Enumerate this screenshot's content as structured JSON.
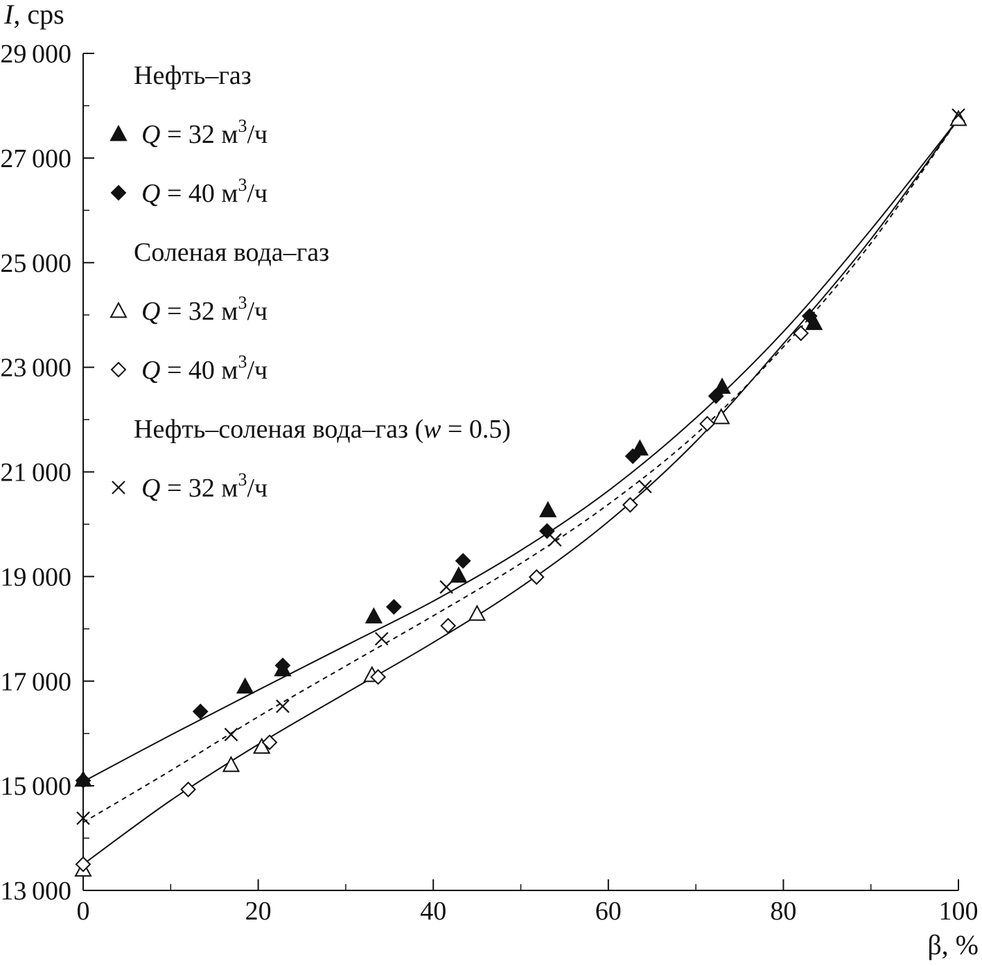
{
  "chart_data": {
    "type": "scatter",
    "ylabel": {
      "var": "I",
      "unit": ", cps"
    },
    "xlabel": {
      "var": "β",
      "unit": ", %"
    },
    "xlim": [
      0,
      100
    ],
    "ylim": [
      13000,
      29000
    ],
    "x_ticks": [
      "0",
      "20",
      "40",
      "60",
      "80",
      "100"
    ],
    "y_ticks": [
      "13000",
      "15000",
      "17000",
      "19000",
      "21000",
      "23000",
      "25000",
      "27000",
      "29000"
    ],
    "legend_position": "top-left",
    "groups": [
      {
        "heading": "Нефть–газ",
        "heading_italic_part": "",
        "heading_suffix": "",
        "entries": [
          {
            "marker": "triangle-filled",
            "label_q": "Q",
            "label_rest": " = 32 м",
            "label_sup": "3",
            "label_tail": "/ч"
          },
          {
            "marker": "diamond-filled",
            "label_q": "Q",
            "label_rest": " = 40 м",
            "label_sup": "3",
            "label_tail": "/ч"
          }
        ]
      },
      {
        "heading": "Соленая вода–газ",
        "heading_italic_part": "",
        "heading_suffix": "",
        "entries": [
          {
            "marker": "triangle-open",
            "label_q": "Q",
            "label_rest": " = 32 м",
            "label_sup": "3",
            "label_tail": "/ч"
          },
          {
            "marker": "diamond-open",
            "label_q": "Q",
            "label_rest": " = 40 м",
            "label_sup": "3",
            "label_tail": "/ч"
          }
        ]
      },
      {
        "heading": "Нефть–соленая вода–газ (",
        "heading_italic_part": "w",
        "heading_suffix": " = 0.5)",
        "entries": [
          {
            "marker": "cross",
            "label_q": "Q",
            "label_rest": " = 32 м",
            "label_sup": "3",
            "label_tail": "/ч"
          }
        ]
      }
    ],
    "series": [
      {
        "marker": "triangle-filled",
        "points": [
          [
            0,
            15120
          ],
          [
            18.5,
            16900
          ],
          [
            22.8,
            17230
          ],
          [
            33.2,
            18240
          ],
          [
            42.9,
            19020
          ],
          [
            53.1,
            20270
          ],
          [
            63.6,
            21450
          ],
          [
            73.0,
            22630
          ],
          [
            83.5,
            23850
          ]
        ]
      },
      {
        "marker": "diamond-filled",
        "points": [
          [
            0,
            15100
          ],
          [
            13.4,
            16420
          ],
          [
            22.8,
            17300
          ],
          [
            35.5,
            18420
          ],
          [
            43.4,
            19300
          ],
          [
            53.0,
            19870
          ],
          [
            62.8,
            21300
          ],
          [
            72.3,
            22450
          ],
          [
            83.0,
            23980
          ]
        ]
      },
      {
        "marker": "triangle-open",
        "points": [
          [
            0,
            13400
          ],
          [
            16.9,
            15400
          ],
          [
            20.4,
            15750
          ],
          [
            33.0,
            17120
          ],
          [
            45.0,
            18290
          ],
          [
            72.9,
            22050
          ],
          [
            100,
            27750
          ]
        ]
      },
      {
        "marker": "diamond-open",
        "points": [
          [
            0,
            13500
          ],
          [
            12.0,
            14930
          ],
          [
            21.3,
            15830
          ],
          [
            33.7,
            17080
          ],
          [
            41.7,
            18060
          ],
          [
            51.8,
            18990
          ],
          [
            62.5,
            20370
          ],
          [
            71.3,
            21920
          ],
          [
            82.0,
            23650
          ]
        ]
      },
      {
        "marker": "cross",
        "points": [
          [
            0,
            14380
          ],
          [
            16.9,
            15980
          ],
          [
            22.8,
            16520
          ],
          [
            34.1,
            17810
          ],
          [
            41.5,
            18800
          ],
          [
            53.9,
            19700
          ],
          [
            64.2,
            20720
          ],
          [
            100,
            27820
          ]
        ]
      }
    ],
    "fit_curves": [
      {
        "style": "solid",
        "points": [
          [
            0,
            15080
          ],
          [
            10,
            15970
          ],
          [
            20,
            16830
          ],
          [
            30,
            17680
          ],
          [
            40,
            18530
          ],
          [
            50,
            19500
          ],
          [
            60,
            20640
          ],
          [
            70,
            22030
          ],
          [
            80,
            23680
          ],
          [
            90,
            25630
          ],
          [
            100,
            27750
          ]
        ]
      },
      {
        "style": "dashed",
        "points": [
          [
            0,
            14300
          ],
          [
            10,
            15290
          ],
          [
            20,
            16320
          ],
          [
            30,
            17290
          ],
          [
            40,
            18250
          ],
          [
            50,
            19250
          ],
          [
            60,
            20380
          ],
          [
            70,
            21720
          ],
          [
            80,
            23390
          ],
          [
            90,
            25370
          ],
          [
            100,
            27750
          ]
        ]
      },
      {
        "style": "solid",
        "points": [
          [
            0,
            13500
          ],
          [
            10,
            14720
          ],
          [
            20,
            15790
          ],
          [
            30,
            16770
          ],
          [
            40,
            17740
          ],
          [
            50,
            18800
          ],
          [
            60,
            20050
          ],
          [
            70,
            21580
          ],
          [
            80,
            23450
          ],
          [
            90,
            25450
          ],
          [
            100,
            27750
          ]
        ]
      }
    ]
  }
}
